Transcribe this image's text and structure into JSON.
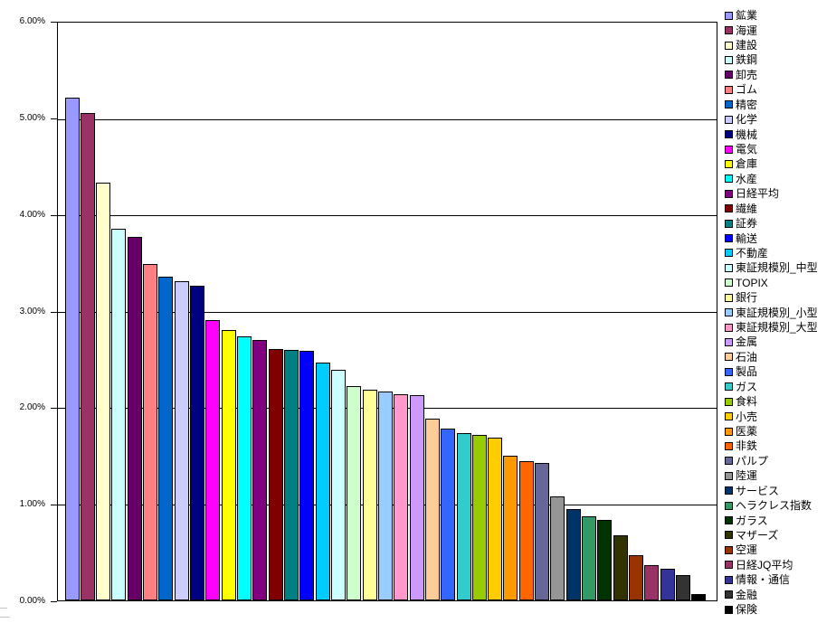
{
  "axis": {
    "y_tick_labels_top_to_bottom": [
      "6.00%",
      "5.00%",
      "4.00%",
      "3.00%",
      "2.00%",
      "1.00%",
      "0.00%"
    ]
  },
  "chart_data": {
    "type": "bar",
    "title": "",
    "xlabel": "",
    "ylabel": "",
    "ylim": [
      0,
      6
    ],
    "y_unit": "%",
    "grid": true,
    "legend_position": "right",
    "sorted": "descending",
    "series": [
      {
        "name": "鉱業",
        "value": 5.22,
        "color": "#9999FF"
      },
      {
        "name": "海運",
        "value": 5.06,
        "color": "#993366"
      },
      {
        "name": "建設",
        "value": 4.34,
        "color": "#FFFFCC"
      },
      {
        "name": "鉄鋼",
        "value": 3.86,
        "color": "#CCFFFF"
      },
      {
        "name": "卸売",
        "value": 3.77,
        "color": "#660066"
      },
      {
        "name": "ゴム",
        "value": 3.49,
        "color": "#FF8080"
      },
      {
        "name": "精密",
        "value": 3.36,
        "color": "#0066CC"
      },
      {
        "name": "化学",
        "value": 3.31,
        "color": "#CCCCFF"
      },
      {
        "name": "機械",
        "value": 3.27,
        "color": "#000080"
      },
      {
        "name": "電気",
        "value": 2.91,
        "color": "#FF00FF"
      },
      {
        "name": "倉庫",
        "value": 2.81,
        "color": "#FFFF00"
      },
      {
        "name": "水産",
        "value": 2.74,
        "color": "#00FFFF"
      },
      {
        "name": "日経平均",
        "value": 2.7,
        "color": "#800080"
      },
      {
        "name": "繊維",
        "value": 2.61,
        "color": "#800000"
      },
      {
        "name": "証券",
        "value": 2.6,
        "color": "#008080"
      },
      {
        "name": "輸送",
        "value": 2.59,
        "color": "#0000FF"
      },
      {
        "name": "不動産",
        "value": 2.47,
        "color": "#00CCFF"
      },
      {
        "name": "東証規模別_中型",
        "value": 2.39,
        "color": "#CCFFFF"
      },
      {
        "name": "TOPIX",
        "value": 2.23,
        "color": "#CCFFCC"
      },
      {
        "name": "銀行",
        "value": 2.19,
        "color": "#FFFF99"
      },
      {
        "name": "東証規模別_小型",
        "value": 2.17,
        "color": "#99CCFF"
      },
      {
        "name": "東証規模別_大型",
        "value": 2.14,
        "color": "#FF99CC"
      },
      {
        "name": "金属",
        "value": 2.13,
        "color": "#CC99FF"
      },
      {
        "name": "石油",
        "value": 1.89,
        "color": "#FFCC99"
      },
      {
        "name": "製品",
        "value": 1.78,
        "color": "#3366FF"
      },
      {
        "name": "ガス",
        "value": 1.74,
        "color": "#33CCCC"
      },
      {
        "name": "食料",
        "value": 1.72,
        "color": "#99CC00"
      },
      {
        "name": "小売",
        "value": 1.69,
        "color": "#FFCC00"
      },
      {
        "name": "医薬",
        "value": 1.5,
        "color": "#FF9900"
      },
      {
        "name": "非鉄",
        "value": 1.45,
        "color": "#FF6600"
      },
      {
        "name": "パルプ",
        "value": 1.43,
        "color": "#666699"
      },
      {
        "name": "陸運",
        "value": 1.08,
        "color": "#969696"
      },
      {
        "name": "サービス",
        "value": 0.95,
        "color": "#003366"
      },
      {
        "name": "ヘラクレス指数",
        "value": 0.87,
        "color": "#339966"
      },
      {
        "name": "ガラス",
        "value": 0.84,
        "color": "#003300"
      },
      {
        "name": "マザーズ",
        "value": 0.68,
        "color": "#333300"
      },
      {
        "name": "空運",
        "value": 0.47,
        "color": "#993300"
      },
      {
        "name": "日経JQ平均",
        "value": 0.37,
        "color": "#993366"
      },
      {
        "name": "情報・通信",
        "value": 0.33,
        "color": "#333399"
      },
      {
        "name": "金融",
        "value": 0.26,
        "color": "#333333"
      },
      {
        "name": "保険",
        "value": 0.07,
        "color": "#000000"
      }
    ]
  }
}
